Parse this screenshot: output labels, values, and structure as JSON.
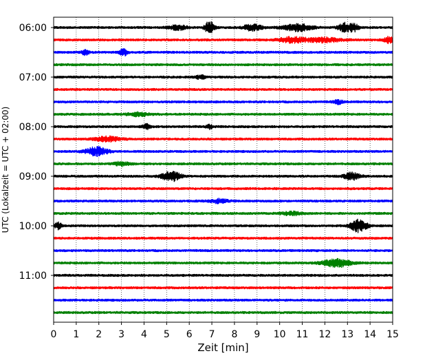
{
  "chart_data": {
    "type": "line",
    "title": "",
    "xlabel": "Zeit  [min]",
    "ylabel": "UTC (Lokalzeit = UTC + 02:00)",
    "xlim": [
      0,
      15
    ],
    "x_ticks": [
      "0",
      "1",
      "2",
      "3",
      "4",
      "5",
      "6",
      "7",
      "8",
      "9",
      "10",
      "11",
      "12",
      "13",
      "14",
      "15"
    ],
    "y_tick_labels": [
      "06:00",
      "07:00",
      "08:00",
      "09:00",
      "10:00",
      "11:00"
    ],
    "grid": "vertical dotted at each minute",
    "trace_interval_minutes": 15,
    "colors_cycle": [
      "#000000",
      "#ff0000",
      "#0000ff",
      "#008000"
    ],
    "series": [
      {
        "start": "06:00",
        "color": "#000000",
        "events": [
          {
            "t": 5.5,
            "amp": 0.35,
            "dur": 0.8
          },
          {
            "t": 6.9,
            "amp": 1.0,
            "dur": 0.4
          },
          {
            "t": 8.8,
            "amp": 0.5,
            "dur": 0.8
          },
          {
            "t": 10.8,
            "amp": 0.55,
            "dur": 1.2
          },
          {
            "t": 12.9,
            "amp": 0.75,
            "dur": 0.6
          },
          {
            "t": 13.3,
            "amp": 0.5,
            "dur": 0.4
          }
        ]
      },
      {
        "start": "06:15",
        "color": "#ff0000",
        "events": [
          {
            "t": 10.6,
            "amp": 0.45,
            "dur": 1.2
          },
          {
            "t": 12.0,
            "amp": 0.35,
            "dur": 1.4
          },
          {
            "t": 14.8,
            "amp": 0.45,
            "dur": 0.5
          }
        ]
      },
      {
        "start": "06:30",
        "color": "#0000ff",
        "events": [
          {
            "t": 1.4,
            "amp": 0.5,
            "dur": 0.3
          },
          {
            "t": 3.1,
            "amp": 0.6,
            "dur": 0.35
          }
        ]
      },
      {
        "start": "06:45",
        "color": "#008000",
        "events": []
      },
      {
        "start": "07:00",
        "color": "#000000",
        "events": [
          {
            "t": 6.5,
            "amp": 0.25,
            "dur": 0.5
          }
        ]
      },
      {
        "start": "07:15",
        "color": "#ff0000",
        "events": []
      },
      {
        "start": "07:30",
        "color": "#0000ff",
        "events": [
          {
            "t": 12.6,
            "amp": 0.3,
            "dur": 0.4
          }
        ]
      },
      {
        "start": "07:45",
        "color": "#008000",
        "events": [
          {
            "t": 3.8,
            "amp": 0.3,
            "dur": 1.0
          }
        ]
      },
      {
        "start": "08:00",
        "color": "#000000",
        "events": [
          {
            "t": 4.1,
            "amp": 0.4,
            "dur": 0.3
          },
          {
            "t": 6.9,
            "amp": 0.3,
            "dur": 0.3
          }
        ]
      },
      {
        "start": "08:15",
        "color": "#ff0000",
        "events": [
          {
            "t": 2.4,
            "amp": 0.35,
            "dur": 1.2
          }
        ]
      },
      {
        "start": "08:30",
        "color": "#0000ff",
        "events": [
          {
            "t": 1.9,
            "amp": 0.75,
            "dur": 0.9
          }
        ]
      },
      {
        "start": "08:45",
        "color": "#008000",
        "events": [
          {
            "t": 3.0,
            "amp": 0.3,
            "dur": 0.7
          }
        ]
      },
      {
        "start": "09:00",
        "color": "#000000",
        "events": [
          {
            "t": 5.2,
            "amp": 0.8,
            "dur": 0.8
          },
          {
            "t": 13.2,
            "amp": 0.55,
            "dur": 0.7
          }
        ]
      },
      {
        "start": "09:15",
        "color": "#ff0000",
        "events": []
      },
      {
        "start": "09:30",
        "color": "#0000ff",
        "events": [
          {
            "t": 7.3,
            "amp": 0.3,
            "dur": 0.8
          }
        ]
      },
      {
        "start": "09:45",
        "color": "#008000",
        "events": [
          {
            "t": 10.5,
            "amp": 0.25,
            "dur": 1.0
          }
        ]
      },
      {
        "start": "10:00",
        "color": "#000000",
        "events": [
          {
            "t": 0.2,
            "amp": 0.55,
            "dur": 0.3
          },
          {
            "t": 13.5,
            "amp": 1.0,
            "dur": 0.7
          }
        ]
      },
      {
        "start": "10:15",
        "color": "#ff0000",
        "events": []
      },
      {
        "start": "10:30",
        "color": "#0000ff",
        "events": []
      },
      {
        "start": "10:45",
        "color": "#008000",
        "events": [
          {
            "t": 12.5,
            "amp": 0.65,
            "dur": 1.2
          }
        ]
      },
      {
        "start": "11:00",
        "color": "#000000",
        "events": []
      },
      {
        "start": "11:15",
        "color": "#ff0000",
        "events": []
      },
      {
        "start": "11:30",
        "color": "#0000ff",
        "events": []
      },
      {
        "start": "11:45",
        "color": "#008000",
        "events": []
      }
    ]
  }
}
